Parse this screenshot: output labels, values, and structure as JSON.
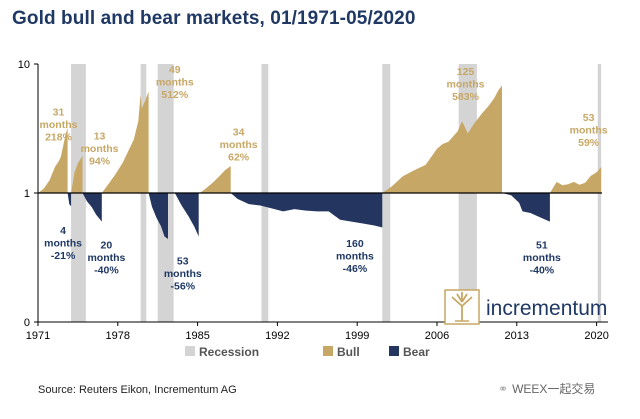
{
  "header": {
    "title": "Gold bull and bear markets, 01/1971-05/2020"
  },
  "footer": {
    "source": "Source: Reuters Eikon, Incrementum AG"
  },
  "watermark": {
    "text": "WEEX一起交易",
    "icon": "wechat-icon"
  },
  "logo": {
    "text": "incrementum",
    "icon": "tree-icon",
    "color": "#1f3864",
    "icon_color": "#c7a765"
  },
  "colors": {
    "bull": "#c7a765",
    "bear": "#24365f",
    "recession": "#d4d4d4",
    "title": "#1f3864",
    "label_bull": "#c7a765",
    "label_bear": "#1f3864"
  },
  "chart_data": {
    "type": "area",
    "title": "Gold bull and bear markets, 01/1971-05/2020",
    "xlabel": "",
    "ylabel": "",
    "y_scale": "log",
    "ylim": [
      0.1,
      10
    ],
    "xlim": [
      1971,
      2021
    ],
    "x_ticks": [
      "1971",
      "1978",
      "1985",
      "1992",
      "1999",
      "2006",
      "2013",
      "2020"
    ],
    "y_ticks": [
      {
        "value": 10,
        "label": "10"
      },
      {
        "value": 1,
        "label": "1"
      },
      {
        "value": 0.1,
        "label": "0"
      }
    ],
    "grid": false,
    "legend": {
      "position": "bottom",
      "entries": [
        {
          "label": "Recession",
          "key": "recession"
        },
        {
          "label": "Bull",
          "key": "bull"
        },
        {
          "label": "Bear",
          "key": "bear"
        }
      ]
    },
    "recessions": [
      [
        1973.9,
        1975.2
      ],
      [
        1980.0,
        1980.5
      ],
      [
        1981.5,
        1982.9
      ],
      [
        1990.6,
        1991.2
      ],
      [
        2001.2,
        2001.9
      ],
      [
        2007.9,
        2009.5
      ],
      [
        2020.1,
        2020.4
      ]
    ],
    "phases": [
      {
        "type": "bull",
        "start": 1971.0,
        "end": 1973.6,
        "months": "31",
        "change": "218%",
        "points": [
          [
            1971.0,
            1.0
          ],
          [
            1971.5,
            1.08
          ],
          [
            1972.0,
            1.25
          ],
          [
            1972.5,
            1.6
          ],
          [
            1972.8,
            1.75
          ],
          [
            1973.0,
            1.9
          ],
          [
            1973.2,
            2.3
          ],
          [
            1973.4,
            2.8
          ],
          [
            1973.6,
            3.2
          ]
        ]
      },
      {
        "type": "bear",
        "start": 1973.6,
        "end": 1973.9,
        "months": "4",
        "change": "-21%",
        "points": [
          [
            1973.6,
            1.0
          ],
          [
            1973.75,
            0.82
          ],
          [
            1973.9,
            0.79
          ]
        ]
      },
      {
        "type": "bull",
        "start": 1973.9,
        "end": 1974.9,
        "months": "13",
        "change": "94%",
        "points": [
          [
            1973.9,
            1.0
          ],
          [
            1974.2,
            1.45
          ],
          [
            1974.5,
            1.7
          ],
          [
            1974.9,
            1.94
          ]
        ]
      },
      {
        "type": "bear",
        "start": 1974.9,
        "end": 1976.6,
        "months": "20",
        "change": "-40%",
        "points": [
          [
            1974.9,
            1.0
          ],
          [
            1975.3,
            0.86
          ],
          [
            1975.7,
            0.78
          ],
          [
            1976.1,
            0.68
          ],
          [
            1976.6,
            0.6
          ]
        ]
      },
      {
        "type": "bull",
        "start": 1976.6,
        "end": 1980.7,
        "months": "49",
        "change": "512%",
        "points": [
          [
            1976.6,
            1.0
          ],
          [
            1977.2,
            1.18
          ],
          [
            1977.8,
            1.4
          ],
          [
            1978.4,
            1.7
          ],
          [
            1978.9,
            2.1
          ],
          [
            1979.4,
            2.6
          ],
          [
            1979.8,
            3.6
          ],
          [
            1980.0,
            5.8
          ],
          [
            1980.1,
            4.5
          ],
          [
            1980.4,
            5.2
          ],
          [
            1980.7,
            6.1
          ]
        ]
      },
      {
        "type": "bear",
        "start": 1980.7,
        "end": 1982.4,
        "months": "53",
        "change": "-56%",
        "points": [
          [
            1980.7,
            1.0
          ],
          [
            1981.0,
            0.78
          ],
          [
            1981.4,
            0.64
          ],
          [
            1981.8,
            0.55
          ],
          [
            1982.1,
            0.46
          ],
          [
            1982.4,
            0.44
          ]
        ]
      },
      {
        "type": "bear",
        "start": 1983.0,
        "end": 1985.1,
        "months": "",
        "change": "",
        "points": [
          [
            1983.0,
            1.0
          ],
          [
            1983.6,
            0.8
          ],
          [
            1984.2,
            0.66
          ],
          [
            1984.7,
            0.55
          ],
          [
            1985.1,
            0.46
          ]
        ]
      },
      {
        "type": "bull",
        "start": 1985.2,
        "end": 1987.9,
        "months": "34",
        "change": "62%",
        "points": [
          [
            1985.2,
            1.0
          ],
          [
            1985.8,
            1.1
          ],
          [
            1986.4,
            1.22
          ],
          [
            1986.9,
            1.35
          ],
          [
            1987.4,
            1.5
          ],
          [
            1987.9,
            1.62
          ]
        ]
      },
      {
        "type": "bear",
        "start": 1987.9,
        "end": 2001.2,
        "months": "160",
        "change": "-46%",
        "points": [
          [
            1987.9,
            1.0
          ],
          [
            1988.5,
            0.9
          ],
          [
            1989.5,
            0.82
          ],
          [
            1990.5,
            0.8
          ],
          [
            1991.5,
            0.76
          ],
          [
            1992.5,
            0.72
          ],
          [
            1993.5,
            0.75
          ],
          [
            1994.5,
            0.73
          ],
          [
            1995.5,
            0.72
          ],
          [
            1996.5,
            0.72
          ],
          [
            1997.5,
            0.62
          ],
          [
            1998.5,
            0.6
          ],
          [
            1999.5,
            0.58
          ],
          [
            2000.5,
            0.56
          ],
          [
            2001.2,
            0.54
          ]
        ]
      },
      {
        "type": "bull",
        "start": 2001.2,
        "end": 2011.7,
        "months": "125",
        "change": "583%",
        "points": [
          [
            2001.2,
            1.0
          ],
          [
            2002.0,
            1.12
          ],
          [
            2003.0,
            1.35
          ],
          [
            2004.0,
            1.5
          ],
          [
            2005.0,
            1.65
          ],
          [
            2006.0,
            2.2
          ],
          [
            2006.5,
            2.4
          ],
          [
            2007.0,
            2.5
          ],
          [
            2007.8,
            3.0
          ],
          [
            2008.2,
            3.6
          ],
          [
            2008.7,
            2.9
          ],
          [
            2009.2,
            3.4
          ],
          [
            2009.9,
            4.1
          ],
          [
            2010.5,
            4.7
          ],
          [
            2011.0,
            5.4
          ],
          [
            2011.4,
            6.3
          ],
          [
            2011.7,
            6.8
          ]
        ]
      },
      {
        "type": "bear",
        "start": 2011.7,
        "end": 2015.9,
        "months": "51",
        "change": "-40%",
        "points": [
          [
            2011.7,
            1.0
          ],
          [
            2012.5,
            0.96
          ],
          [
            2013.2,
            0.84
          ],
          [
            2013.5,
            0.72
          ],
          [
            2014.2,
            0.7
          ],
          [
            2015.0,
            0.65
          ],
          [
            2015.9,
            0.6
          ]
        ]
      },
      {
        "type": "bull",
        "start": 2015.9,
        "end": 2020.4,
        "months": "53",
        "change": "59%",
        "points": [
          [
            2015.9,
            1.0
          ],
          [
            2016.5,
            1.22
          ],
          [
            2017.0,
            1.15
          ],
          [
            2017.5,
            1.17
          ],
          [
            2018.0,
            1.22
          ],
          [
            2018.5,
            1.16
          ],
          [
            2019.0,
            1.2
          ],
          [
            2019.5,
            1.36
          ],
          [
            2020.0,
            1.45
          ],
          [
            2020.4,
            1.59
          ]
        ]
      }
    ],
    "annotations": [
      {
        "series": "bull",
        "lines": [
          "31",
          "months",
          "218%"
        ],
        "x": 1972.8,
        "y": 4.0
      },
      {
        "series": "bear",
        "lines": [
          "4",
          "months",
          "-21%"
        ],
        "x": 1973.2,
        "y": 0.48
      },
      {
        "series": "bull",
        "lines": [
          "13",
          "months",
          "94%"
        ],
        "x": 1976.4,
        "y": 2.6
      },
      {
        "series": "bear",
        "lines": [
          "20",
          "months",
          "-40%"
        ],
        "x": 1977.0,
        "y": 0.37
      },
      {
        "series": "bull",
        "lines": [
          "49",
          "months",
          "512%"
        ],
        "x": 1983.0,
        "y": 8.5
      },
      {
        "series": "bear",
        "lines": [
          "53",
          "months",
          "-56%"
        ],
        "x": 1983.7,
        "y": 0.28
      },
      {
        "series": "bull",
        "lines": [
          "34",
          "months",
          "62%"
        ],
        "x": 1988.6,
        "y": 2.8
      },
      {
        "series": "bear",
        "lines": [
          "160",
          "months",
          "-46%"
        ],
        "x": 1998.8,
        "y": 0.38
      },
      {
        "series": "bull",
        "lines": [
          "125",
          "months",
          "583%"
        ],
        "x": 2008.5,
        "y": 8.2
      },
      {
        "series": "bear",
        "lines": [
          "51",
          "months",
          "-40%"
        ],
        "x": 2015.2,
        "y": 0.37
      },
      {
        "series": "bull",
        "lines": [
          "53",
          "months",
          "59%"
        ],
        "x": 2019.3,
        "y": 3.6
      }
    ]
  }
}
